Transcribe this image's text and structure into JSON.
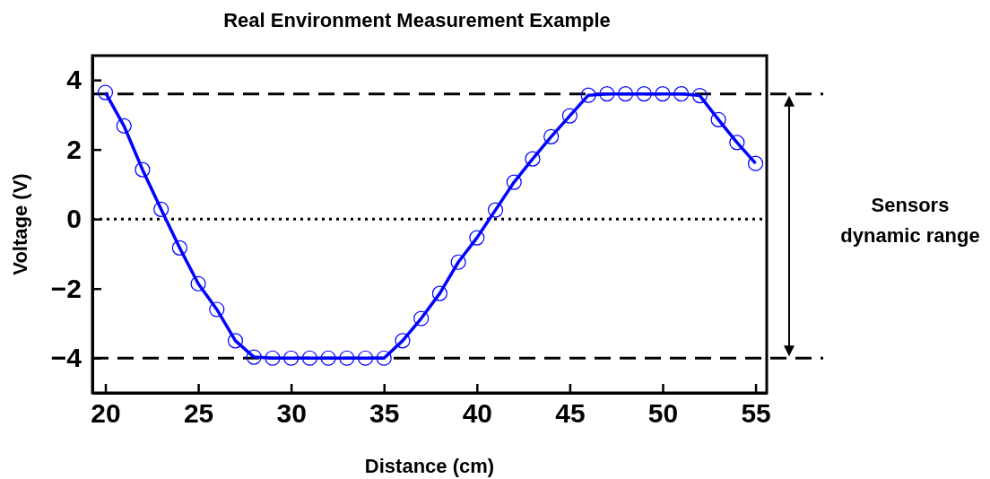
{
  "chart_data": {
    "type": "line",
    "title": "Real Environment Measurement Example",
    "xlabel": "Distance (cm)",
    "ylabel": "Voltage (V)",
    "x": [
      20,
      21,
      22,
      23,
      24,
      25,
      26,
      27,
      28,
      29,
      30,
      31,
      32,
      33,
      34,
      35,
      36,
      37,
      38,
      39,
      40,
      41,
      42,
      43,
      44,
      45,
      46,
      47,
      48,
      49,
      50,
      51,
      52,
      53,
      54,
      55
    ],
    "series": [
      {
        "color": "#0000ff",
        "values": [
          3.64,
          2.68,
          1.42,
          0.28,
          -0.83,
          -1.86,
          -2.6,
          -3.5,
          -3.97,
          -4,
          -4,
          -4,
          -4,
          -4,
          -4,
          -4,
          -3.5,
          -2.86,
          -2.14,
          -1.24,
          -0.54,
          0.26,
          1.06,
          1.73,
          2.37,
          2.97,
          3.56,
          3.6,
          3.6,
          3.6,
          3.6,
          3.6,
          3.55,
          2.86,
          2.2,
          1.6
        ]
      }
    ],
    "marker": "circle",
    "line_style": "solid",
    "grid": false,
    "xlim": [
      19.3,
      55.6
    ],
    "xticks": [
      20,
      25,
      30,
      35,
      40,
      45,
      50,
      55
    ],
    "ylim": [
      -5,
      4.7
    ],
    "yticks": [
      {
        "value": -4,
        "label": "−4"
      },
      {
        "value": -2,
        "label": "−2"
      },
      0,
      2,
      4
    ],
    "ref_lines": [
      {
        "axis": "y",
        "value": 3.6,
        "color": "#000000",
        "line_style": "dashed"
      },
      {
        "axis": "y",
        "value": -4,
        "color": "#000000",
        "line_style": "dashed"
      },
      {
        "axis": "y",
        "value": 0,
        "color": "#000000",
        "line_style": "dotted"
      }
    ],
    "annotations": [
      "Sensors dynamic range"
    ]
  }
}
